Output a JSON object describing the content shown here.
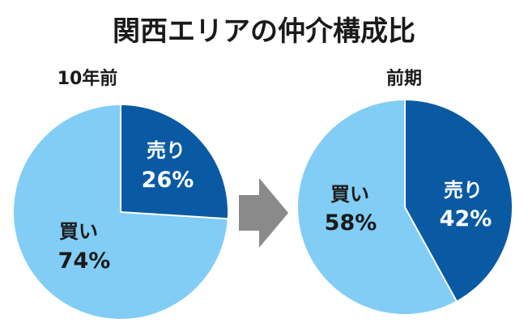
{
  "title": "関西エリアの仲介構成比",
  "colors": {
    "sell": "#0a5aa3",
    "buy": "#82cdf5",
    "arrow": "#8a8a8a",
    "sell_text": "#ffffff",
    "buy_text": "#1a1a1a"
  },
  "chart_data": [
    {
      "type": "pie",
      "title": "10年前",
      "slices": [
        {
          "label": "売り",
          "value": 26,
          "display": "26%"
        },
        {
          "label": "買い",
          "value": 74,
          "display": "74%"
        }
      ]
    },
    {
      "type": "pie",
      "title": "前期",
      "slices": [
        {
          "label": "売り",
          "value": 42,
          "display": "42%"
        },
        {
          "label": "買い",
          "value": 58,
          "display": "58%"
        }
      ]
    }
  ],
  "arrow_icon": "right-arrow-icon"
}
